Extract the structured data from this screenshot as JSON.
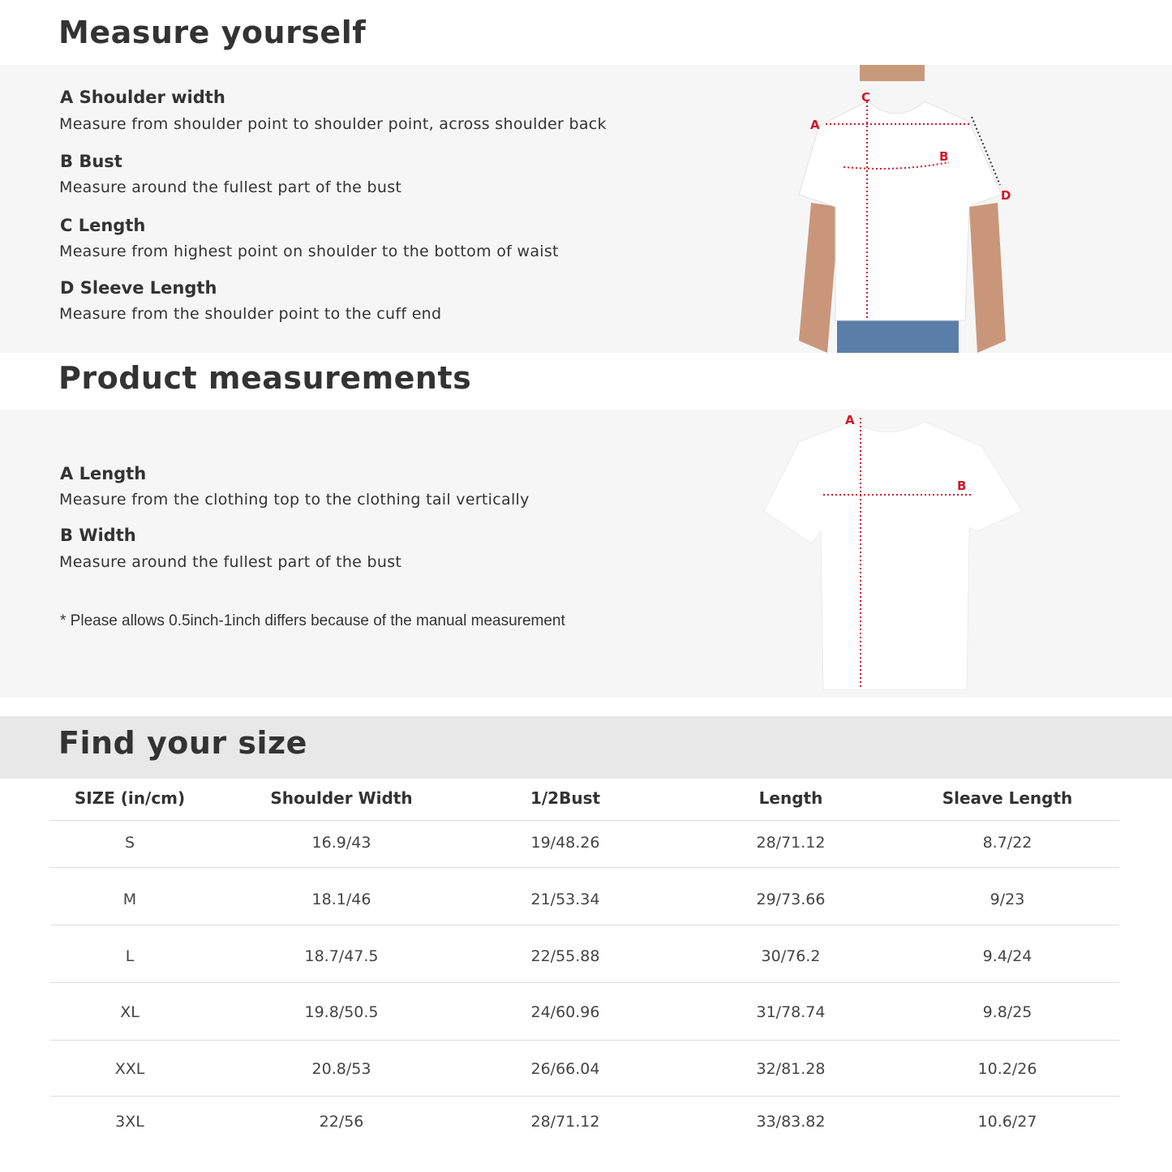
{
  "measure_yourself": {
    "title": "Measure yourself",
    "items": [
      {
        "title": "A Shoulder width",
        "desc": "Measure from shoulder point to shoulder point, across shoulder back"
      },
      {
        "title": "B Bust",
        "desc": "Measure around the fullest part of the bust"
      },
      {
        "title": "C Length",
        "desc": "Measure from highest point on shoulder to the bottom of waist"
      },
      {
        "title": "D Sleeve Length",
        "desc": "Measure from the shoulder point to the cuff end"
      }
    ],
    "diagram_labels": [
      "A",
      "B",
      "C",
      "D"
    ]
  },
  "product_measurements": {
    "title": "Product measurements",
    "items": [
      {
        "title": "A Length",
        "desc": "Measure from the clothing top to the clothing tail vertically"
      },
      {
        "title": "B Width",
        "desc": "Measure around the fullest part of the bust"
      }
    ],
    "note": "* Please allows 0.5inch-1inch differs because of the  manual measurement",
    "diagram_labels": [
      "A",
      "B"
    ]
  },
  "size_table": {
    "title": "Find your size",
    "headers": [
      "SIZE (in/cm)",
      "Shoulder Width",
      "1/2Bust",
      "Length",
      "Sleave Length"
    ],
    "rows": [
      [
        "S",
        "16.9/43",
        "19/48.26",
        "28/71.12",
        "8.7/22"
      ],
      [
        "M",
        "18.1/46",
        "21/53.34",
        "29/73.66",
        "9/23"
      ],
      [
        "L",
        "18.7/47.5",
        "22/55.88",
        "30/76.2",
        "9.4/24"
      ],
      [
        "XL",
        "19.8/50.5",
        "24/60.96",
        "31/78.74",
        "9.8/25"
      ],
      [
        "XXL",
        "20.8/53",
        "26/66.04",
        "32/81.28",
        "10.2/26"
      ],
      [
        "3XL",
        "22/56",
        "28/71.12",
        "33/83.82",
        "10.6/27"
      ]
    ]
  },
  "colors": {
    "marker": "#d0182a",
    "band": "#f6f6f6",
    "header_band": "#e8e8e8"
  }
}
